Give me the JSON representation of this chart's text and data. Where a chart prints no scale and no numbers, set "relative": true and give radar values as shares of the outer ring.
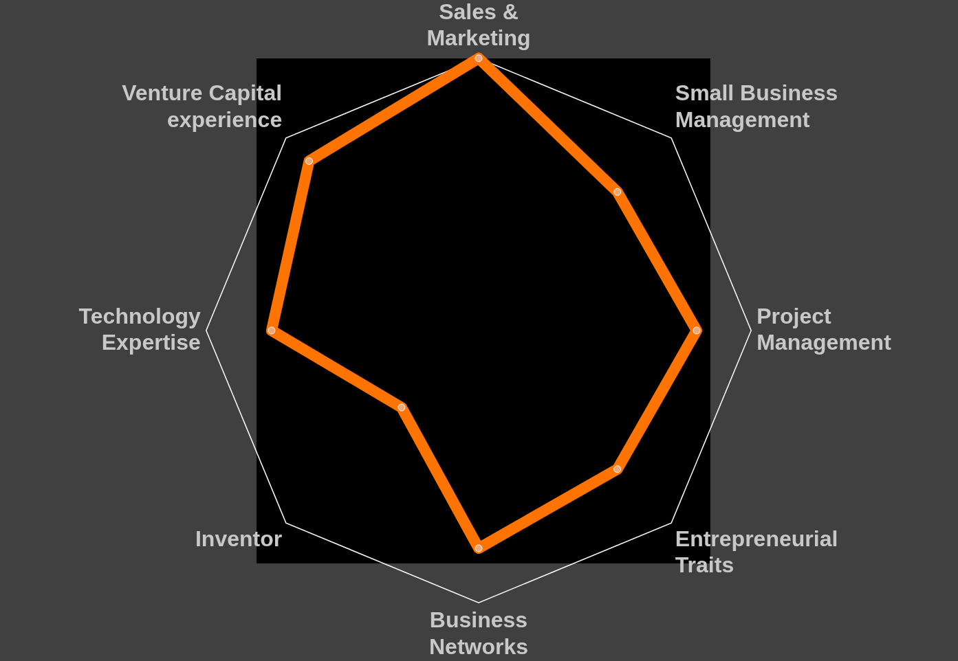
{
  "chart_data": {
    "type": "radar",
    "categories": [
      "Sales & Marketing",
      "Small Business Management",
      "Project Management",
      "Entrepreneurial Traits",
      "Business Networks",
      "Inventor",
      "Technology Expertise",
      "Venture Capital experience"
    ],
    "series": [
      {
        "color": "#ff7300",
        "values": [
          1.0,
          0.72,
          0.8,
          0.72,
          0.8,
          0.4,
          0.76,
          0.88
        ]
      }
    ],
    "relative": true,
    "grid": true,
    "legend": false,
    "marker": "circle"
  }
}
